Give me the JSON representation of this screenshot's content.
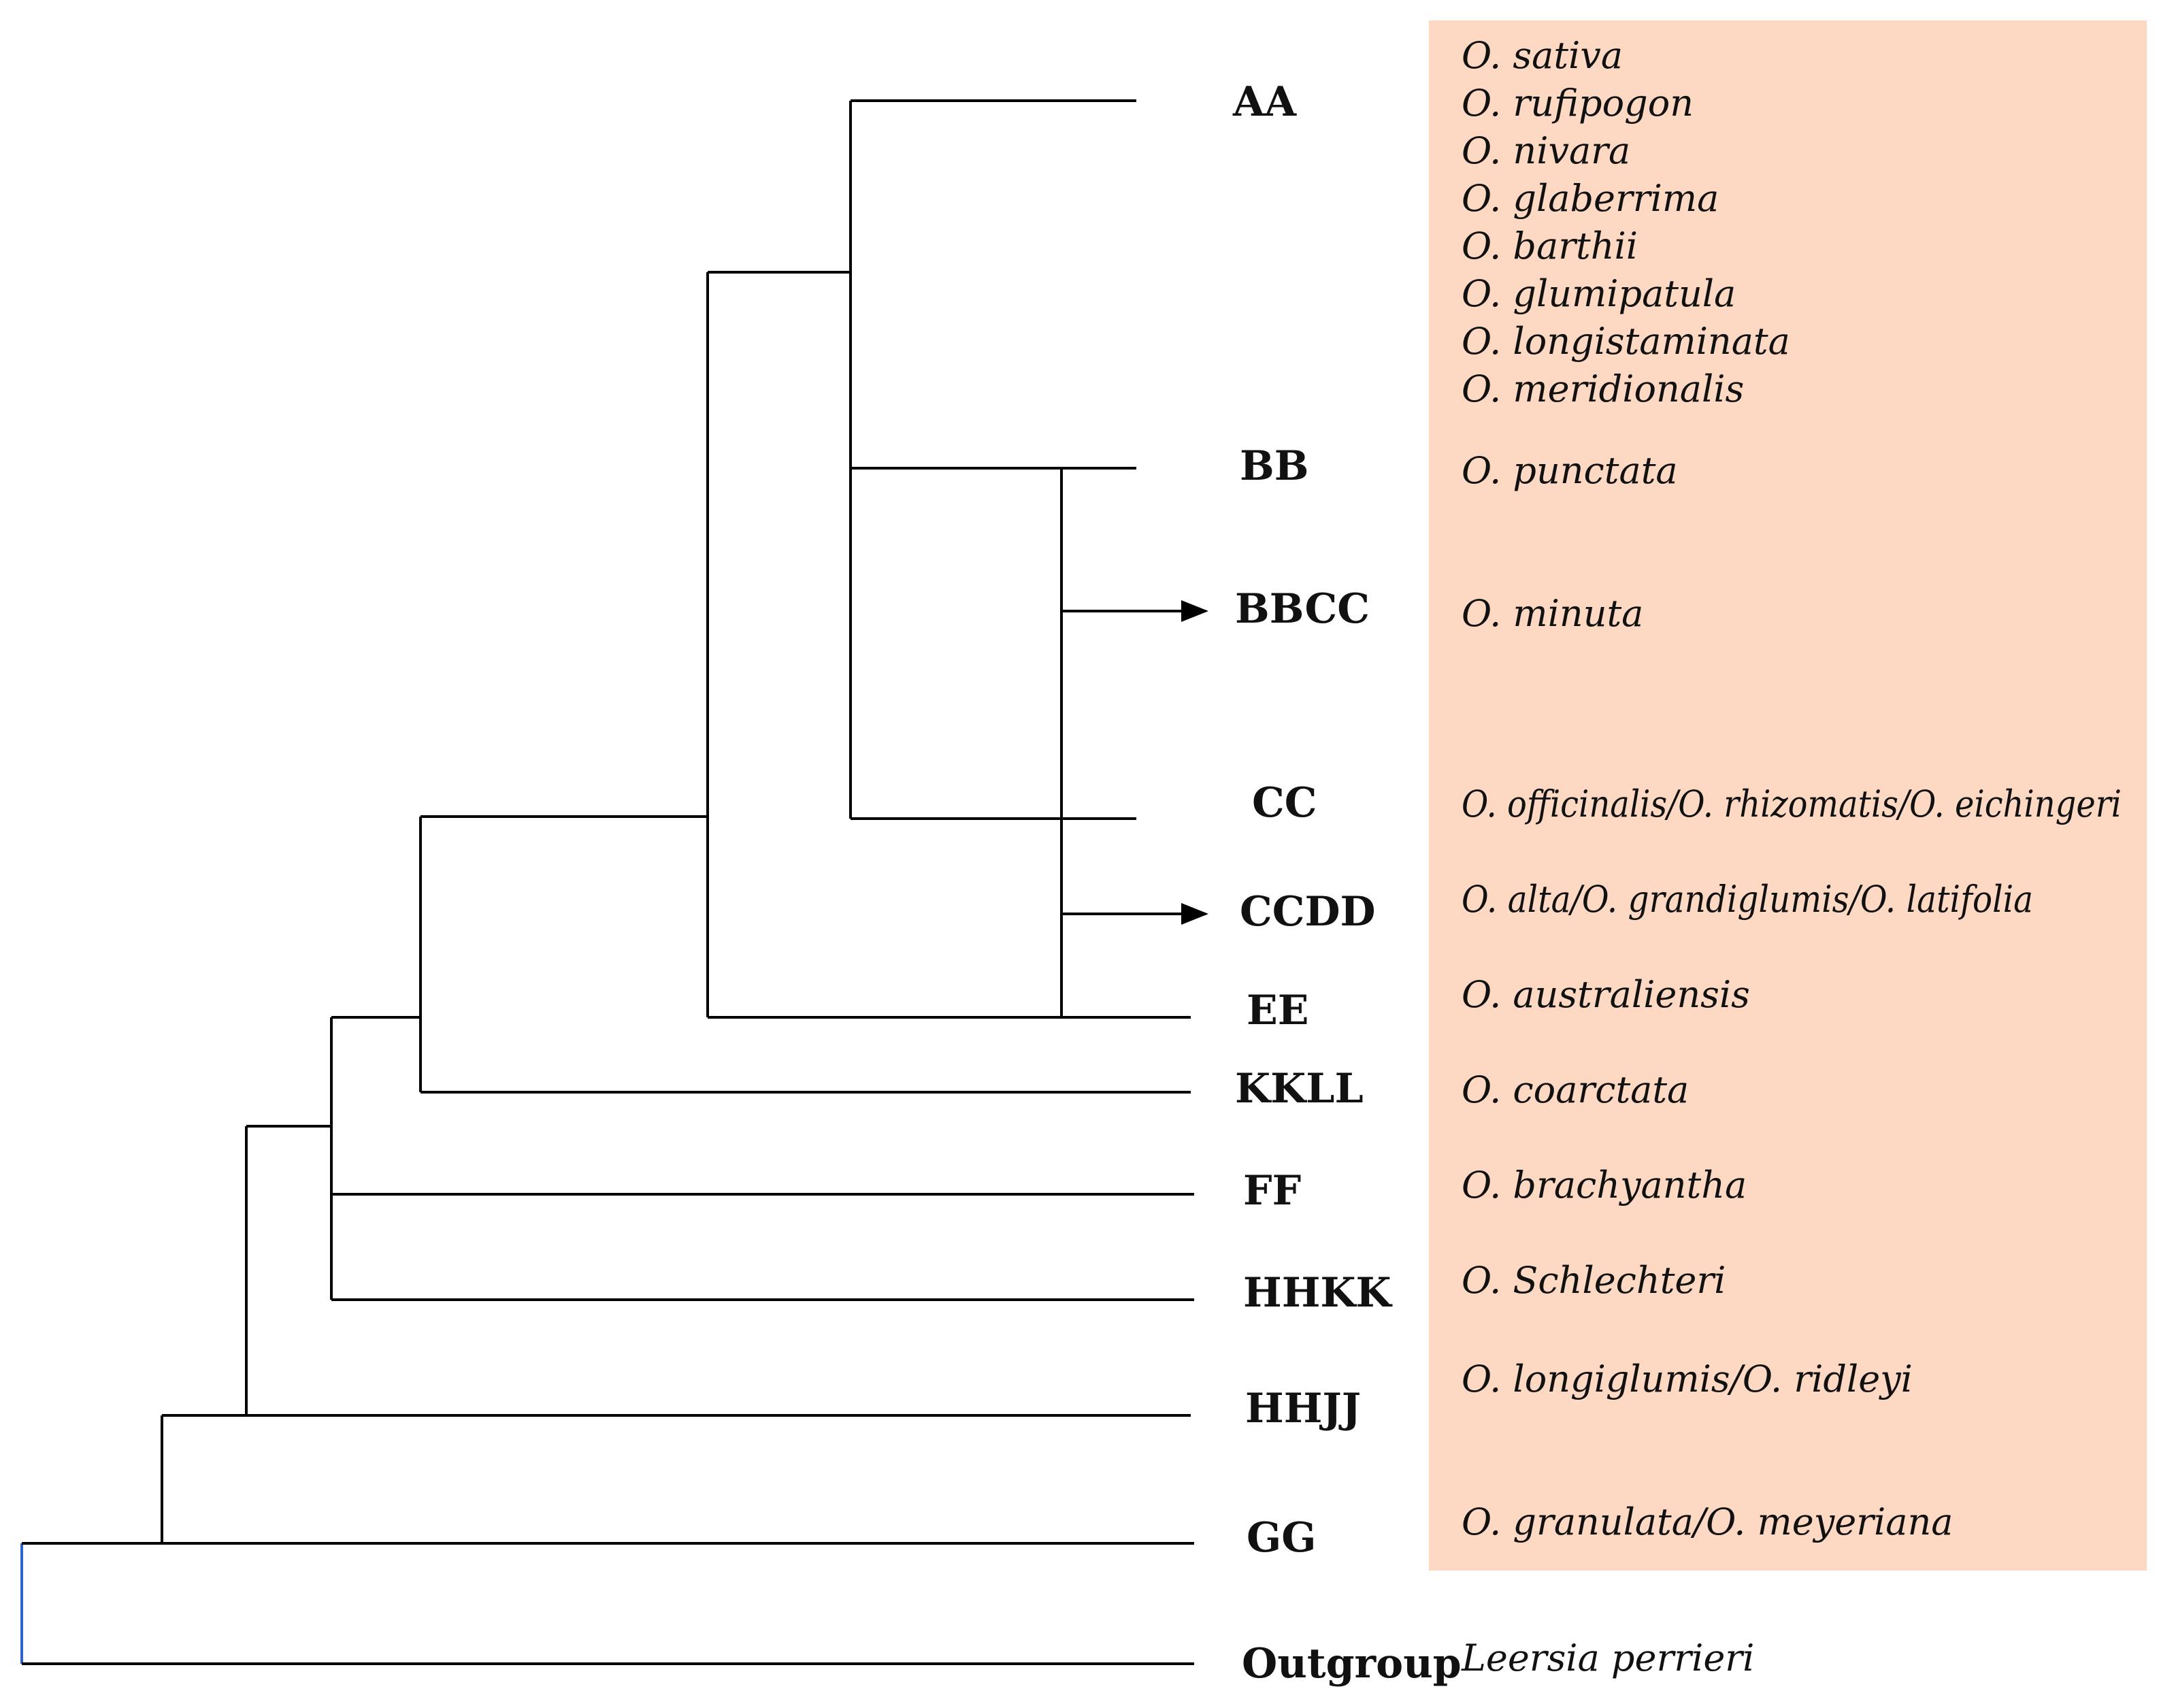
{
  "colors": {
    "species_panel": "#fdd8c2",
    "branch": "#000000",
    "root_tick": "#2a62c8"
  },
  "genomes": {
    "aa": "AA",
    "bb": "BB",
    "bbcc": "BBCC",
    "cc": "CC",
    "ccdd": "CCDD",
    "ee": "EE",
    "kkll": "KKLL",
    "ff": "FF",
    "hhkk": "HHKK",
    "hhjj": "HHJJ",
    "gg": "GG",
    "outgroup": "Outgroup"
  },
  "species": {
    "aa": [
      "O. sativa",
      "O. rufipogon",
      "O. nivara",
      "O. glaberrima",
      "O. barthii",
      "O. glumipatula",
      "O. longistaminata",
      "O. meridionalis"
    ],
    "bb": "O. punctata",
    "bbcc": "O. minuta",
    "cc": "O. officinalis/O. rhizomatis/O. eichingeri",
    "ccdd": "O. alta/O. grandiglumis/O. latifolia",
    "ee": "O. australiensis",
    "kkll": "O. coarctata",
    "ff": "O. brachyantha",
    "hhkk": "O. Schlechteri",
    "hhjj": "O. longiglumis/O. ridleyi",
    "gg": "O. granulata/O. meyeriana",
    "outgroup": "Leersia perrieri"
  }
}
